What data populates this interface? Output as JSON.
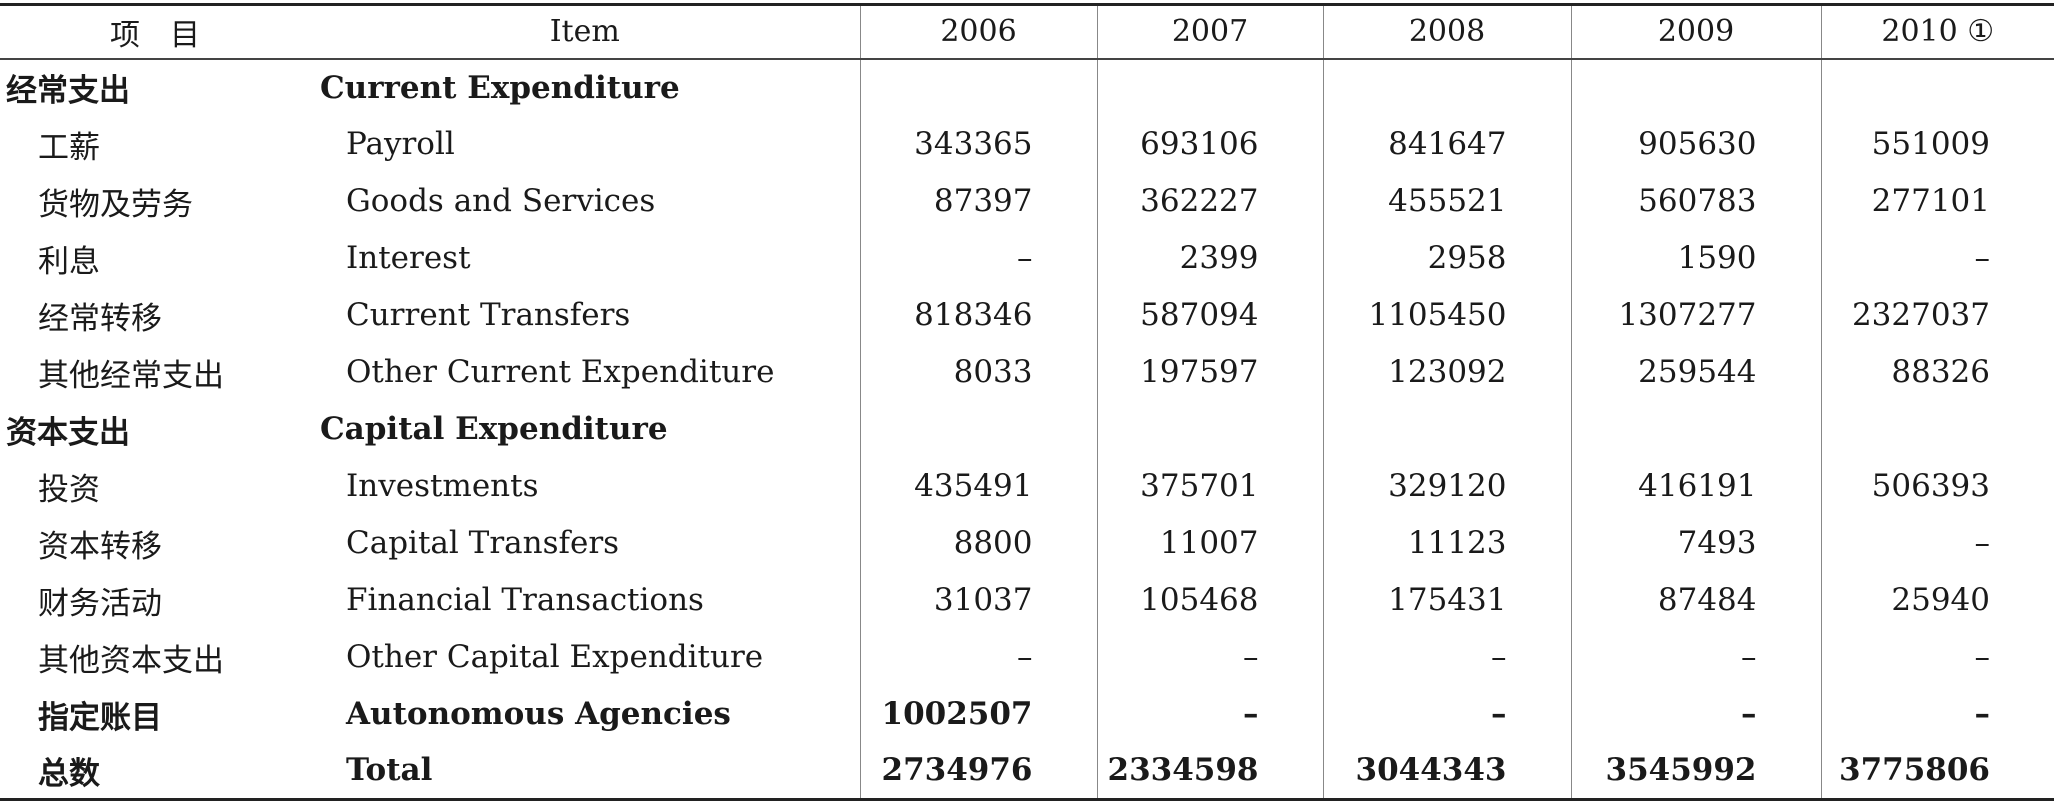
{
  "headers": [
    "项　目",
    "Item",
    "2006",
    "2007",
    "2008",
    "2009",
    "2010 ①"
  ],
  "rows": [
    {
      "cn": "经常支出",
      "en": "Current  Expenditure",
      "values": [
        "",
        "",
        "",
        "",
        ""
      ],
      "type": "section"
    },
    {
      "cn": "工薪",
      "en": "Payroll",
      "values": [
        "343365",
        "693106",
        "841647",
        "905630",
        "551009"
      ],
      "type": "item"
    },
    {
      "cn": "货物及劳务",
      "en": "Goods  and  Services",
      "values": [
        "87397",
        "362227",
        "455521",
        "560783",
        "277101"
      ],
      "type": "item"
    },
    {
      "cn": "利息",
      "en": "Interest",
      "values": [
        "–",
        "2399",
        "2958",
        "1590",
        "–"
      ],
      "type": "item"
    },
    {
      "cn": "经常转移",
      "en": "Current  Transfers",
      "values": [
        "818346",
        "587094",
        "1105450",
        "1307277",
        "2327037"
      ],
      "type": "item"
    },
    {
      "cn": "其他经常支出",
      "en": "Other  Current  Expenditure",
      "values": [
        "8033",
        "197597",
        "123092",
        "259544",
        "88326"
      ],
      "type": "item"
    },
    {
      "cn": "资本支出",
      "en": "Capital  Expenditure",
      "values": [
        "",
        "",
        "",
        "",
        ""
      ],
      "type": "section"
    },
    {
      "cn": "投资",
      "en": "Investments",
      "values": [
        "435491",
        "375701",
        "329120",
        "416191",
        "506393"
      ],
      "type": "item"
    },
    {
      "cn": "资本转移",
      "en": "Capital  Transfers",
      "values": [
        "8800",
        "11007",
        "11123",
        "7493",
        "–"
      ],
      "type": "item"
    },
    {
      "cn": "财务活动",
      "en": "Financial  Transactions",
      "values": [
        "31037",
        "105468",
        "175431",
        "87484",
        "25940"
      ],
      "type": "item"
    },
    {
      "cn": "其他资本支出",
      "en": "Other  Capital  Expenditure",
      "values": [
        "–",
        "–",
        "–",
        "–",
        "–"
      ],
      "type": "item"
    },
    {
      "cn": "指定账目",
      "en": "Autonomous  Agencies",
      "values": [
        "1002507",
        "–",
        "–",
        "–",
        "–"
      ],
      "type": "bold"
    },
    {
      "cn": "总数",
      "en": "Total",
      "values": [
        "2734976",
        "2334598",
        "3044343",
        "3545992",
        "3775806"
      ],
      "type": "bold"
    }
  ]
}
